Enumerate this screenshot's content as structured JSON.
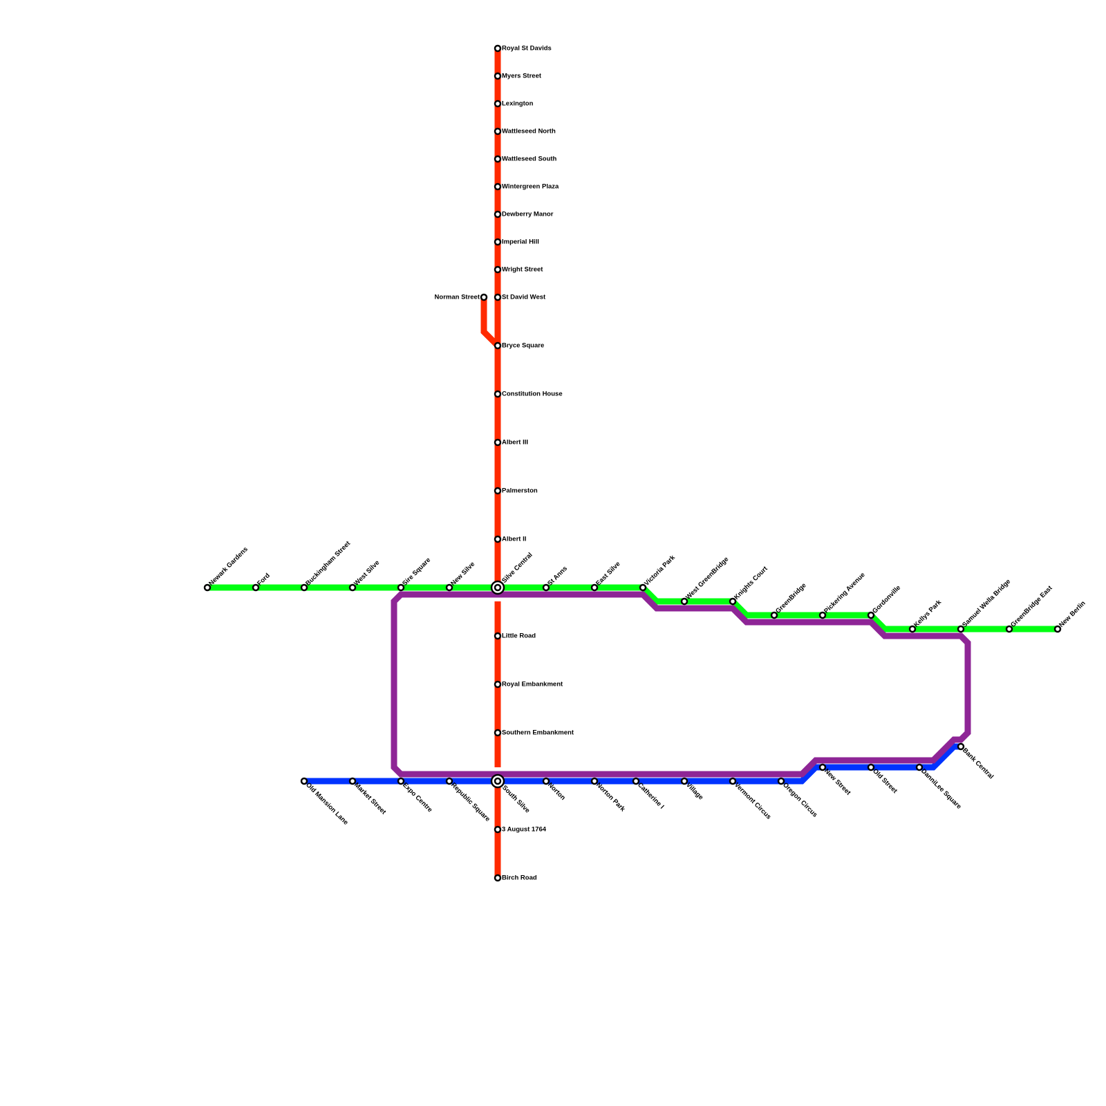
{
  "vertical_line_stations": [
    "Royal St Davids",
    "Myers Street",
    "Lexington",
    "Wattleseed North",
    "Wattleseed South",
    "Wintergreen Plaza",
    "Dewberry Manor",
    "Imperial Hill",
    "Wright Street",
    "St David West",
    "Bryce Square",
    "Constitution House",
    "Albert III",
    "Palmerston",
    "Albert II",
    "Silve Central",
    "Little Road",
    "Royal Embankment",
    "Southern Embankment",
    "South Silve",
    "3 August 1764",
    "Birch Road"
  ],
  "branch_stations": [
    "Norman Street"
  ],
  "upper_line_stations": [
    "Newark Gardens",
    "Ford",
    "Buckingham Street",
    "West Silve",
    "Sire Square",
    "New Silve",
    "St Anns",
    "East Silve",
    "Victoria Park",
    "West GreenBridge",
    "Knights Court",
    "GreenBridge",
    "Pickering Avenue",
    "Gordonville",
    "Kellys Park",
    "Samuel Wella Bridge",
    "GreenBridge East",
    "New Berlin"
  ],
  "lower_line_stations": [
    "Old Mansion Lane",
    "Market Street",
    "Expo Centre",
    "Republic Square",
    "Norton",
    "Norton Park",
    "Catherine I",
    "Village",
    "Vermont Circus",
    "Oregon Circus",
    "New Street",
    "Old Street",
    "DanniLee Square",
    "Bank Central"
  ]
}
